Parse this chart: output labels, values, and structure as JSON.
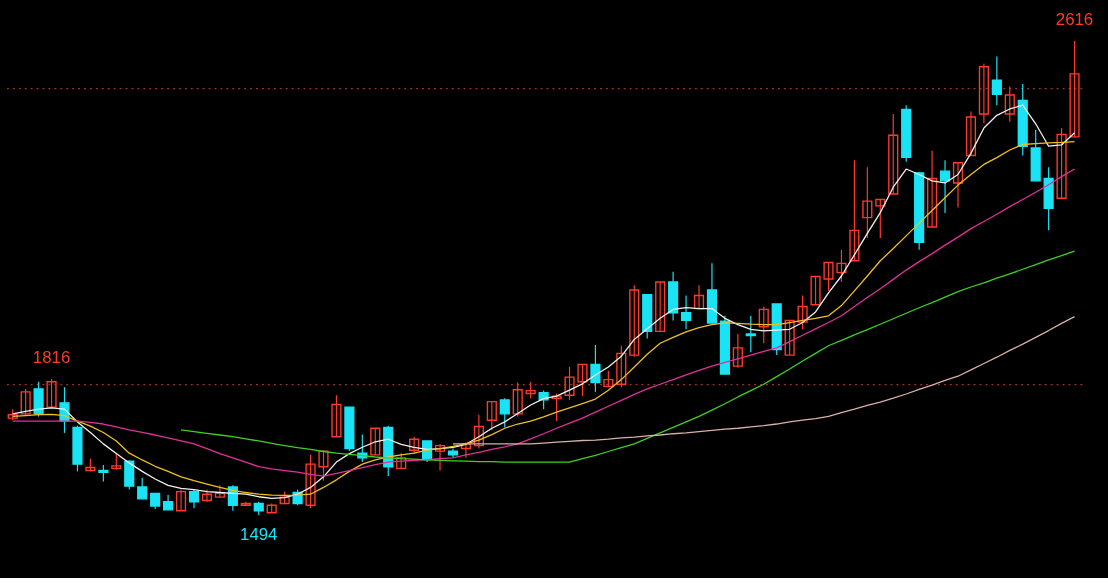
{
  "chart_data": {
    "type": "candlestick",
    "categories": [
      null,
      null,
      null,
      null,
      null,
      null,
      null,
      null,
      null,
      null,
      null,
      null,
      null,
      null,
      null,
      null,
      null,
      null,
      null,
      null,
      null,
      null,
      null,
      null,
      null,
      null,
      null,
      null,
      null,
      null,
      null,
      null,
      null,
      null,
      null,
      null,
      null,
      null,
      null,
      null,
      null,
      null,
      null,
      null,
      null,
      null,
      null,
      null,
      null,
      null,
      null,
      null,
      null,
      null,
      null,
      null,
      null,
      null,
      null,
      null,
      null,
      null,
      null,
      null,
      null,
      null,
      null,
      null,
      null,
      null,
      null,
      null,
      null,
      null,
      null,
      null,
      null,
      null,
      null,
      null,
      null,
      null,
      null
    ],
    "ohlc": [
      [
        1724,
        1745,
        1719,
        1732
      ],
      [
        1734,
        1793,
        1732,
        1786
      ],
      [
        1793,
        1810,
        1728,
        1734
      ],
      [
        1750,
        1816,
        1750,
        1810
      ],
      [
        1760,
        1797,
        1689,
        1717
      ],
      [
        1702,
        1706,
        1598,
        1615
      ],
      [
        1600,
        1628,
        1598,
        1607
      ],
      [
        1600,
        1613,
        1574,
        1596
      ],
      [
        1605,
        1641,
        1602,
        1611
      ],
      [
        1622,
        1624,
        1555,
        1563
      ],
      [
        1561,
        1583,
        1533,
        1533
      ],
      [
        1546,
        1546,
        1509,
        1516
      ],
      [
        1526,
        1542,
        1507,
        1507
      ],
      [
        1505,
        1555,
        1505,
        1550
      ],
      [
        1550,
        1555,
        1511,
        1526
      ],
      [
        1529,
        1555,
        1526,
        1544
      ],
      [
        1537,
        1565,
        1537,
        1546
      ],
      [
        1561,
        1565,
        1505,
        1518
      ],
      [
        1518,
        1526,
        1516,
        1522
      ],
      [
        1522,
        1526,
        1494,
        1505
      ],
      [
        1500,
        1522,
        1500,
        1518
      ],
      [
        1522,
        1550,
        1520,
        1537
      ],
      [
        1548,
        1555,
        1518,
        1522
      ],
      [
        1518,
        1637,
        1511,
        1615
      ],
      [
        1609,
        1648,
        1576,
        1646
      ],
      [
        1680,
        1778,
        1680,
        1756
      ],
      [
        1750,
        1750,
        1646,
        1652
      ],
      [
        1641,
        1685,
        1620,
        1630
      ],
      [
        1637,
        1700,
        1637,
        1700
      ],
      [
        1702,
        1706,
        1587,
        1609
      ],
      [
        1605,
        1641,
        1605,
        1630
      ],
      [
        1648,
        1680,
        1641,
        1674
      ],
      [
        1670,
        1670,
        1620,
        1626
      ],
      [
        1646,
        1663,
        1600,
        1659
      ],
      [
        1646,
        1652,
        1630,
        1637
      ],
      [
        1652,
        1667,
        1630,
        1663
      ],
      [
        1659,
        1732,
        1652,
        1704
      ],
      [
        1719,
        1763,
        1695,
        1763
      ],
      [
        1767,
        1771,
        1702,
        1734
      ],
      [
        1734,
        1808,
        1728,
        1791
      ],
      [
        1782,
        1810,
        1771,
        1789
      ],
      [
        1784,
        1789,
        1745,
        1767
      ],
      [
        1771,
        1782,
        1717,
        1776
      ],
      [
        1778,
        1845,
        1767,
        1821
      ],
      [
        1810,
        1851,
        1776,
        1851
      ],
      [
        1851,
        1897,
        1786,
        1808
      ],
      [
        1799,
        1836,
        1797,
        1815
      ],
      [
        1804,
        1895,
        1797,
        1877
      ],
      [
        1873,
        2038,
        1869,
        2027
      ],
      [
        2016,
        2016,
        1912,
        1929
      ],
      [
        1929,
        2046,
        1929,
        2046
      ],
      [
        2046,
        2070,
        1955,
        1973
      ],
      [
        1973,
        2014,
        1934,
        1955
      ],
      [
        1983,
        2038,
        1983,
        2014
      ],
      [
        2027,
        2090,
        1949,
        1949
      ],
      [
        1953,
        1966,
        1828,
        1828
      ],
      [
        1847,
        1923,
        1843,
        1890
      ],
      [
        1923,
        1966,
        1880,
        1919
      ],
      [
        1940,
        1988,
        1901,
        1981
      ],
      [
        1994,
        1994,
        1873,
        1886
      ],
      [
        1873,
        1955,
        1873,
        1955
      ],
      [
        1951,
        2014,
        1934,
        1988
      ],
      [
        1992,
        2059,
        1992,
        2059
      ],
      [
        2053,
        2092,
        2025,
        2092
      ],
      [
        2068,
        2122,
        2046,
        2090
      ],
      [
        2096,
        2334,
        2096,
        2168
      ],
      [
        2198,
        2317,
        2150,
        2237
      ],
      [
        2226,
        2241,
        2150,
        2241
      ],
      [
        2254,
        2443,
        2254,
        2393
      ],
      [
        2454,
        2464,
        2330,
        2341
      ],
      [
        2304,
        2306,
        2122,
        2140
      ],
      [
        2176,
        2356,
        2176,
        2291
      ],
      [
        2308,
        2334,
        2209,
        2285
      ],
      [
        2280,
        2328,
        2222,
        2328
      ],
      [
        2345,
        2449,
        2345,
        2436
      ],
      [
        2443,
        2562,
        2421,
        2555
      ],
      [
        2523,
        2579,
        2464,
        2490
      ],
      [
        2443,
        2508,
        2425,
        2488
      ],
      [
        2475,
        2514,
        2345,
        2367
      ],
      [
        2363,
        2406,
        2285,
        2285
      ],
      [
        2291,
        2317,
        2168,
        2220
      ],
      [
        2244,
        2410,
        2244,
        2395
      ],
      [
        2389,
        2616,
        2389,
        2538
      ]
    ],
    "series": [
      {
        "type": "line",
        "color": "#f2f2f2",
        "values": [
          1734,
          1740,
          1745,
          1748,
          1745,
          1715,
          1690,
          1663,
          1640,
          1618,
          1598,
          1580,
          1565,
          1558,
          1555,
          1550,
          1548,
          1546,
          1544,
          1538,
          1534,
          1536,
          1544,
          1560,
          1585,
          1620,
          1640,
          1655,
          1668,
          1674,
          1662,
          1655,
          1650,
          1652,
          1655,
          1662,
          1680,
          1700,
          1715,
          1735,
          1755,
          1770,
          1776,
          1790,
          1805,
          1826,
          1845,
          1870,
          1910,
          1935,
          1960,
          1981,
          1985,
          1983,
          1983,
          1960,
          1945,
          1934,
          1930,
          1932,
          1934,
          1950,
          1975,
          2020,
          2060,
          2110,
          2161,
          2210,
          2270,
          2313,
          2300,
          2285,
          2280,
          2300,
          2350,
          2410,
          2440,
          2455,
          2464,
          2420,
          2367,
          2370,
          2399
        ]
      },
      {
        "type": "line",
        "color": "#f0c020",
        "values": [
          1728,
          1730,
          1732,
          1733,
          1730,
          1717,
          1705,
          1690,
          1670,
          1641,
          1625,
          1610,
          1598,
          1585,
          1576,
          1568,
          1560,
          1553,
          1548,
          1544,
          1542,
          1541,
          1542,
          1544,
          1560,
          1578,
          1598,
          1615,
          1625,
          1632,
          1637,
          1641,
          1648,
          1652,
          1657,
          1663,
          1672,
          1685,
          1700,
          1710,
          1717,
          1727,
          1738,
          1748,
          1758,
          1769,
          1790,
          1815,
          1845,
          1875,
          1901,
          1915,
          1928,
          1938,
          1945,
          1949,
          1948,
          1946,
          1945,
          1945,
          1950,
          1955,
          1960,
          1966,
          1990,
          2025,
          2060,
          2096,
          2125,
          2155,
          2185,
          2215,
          2245,
          2275,
          2300,
          2324,
          2340,
          2358,
          2371,
          2373,
          2375,
          2376,
          2378
        ]
      },
      {
        "type": "line",
        "color": "#e0309a",
        "values": [
          1717,
          1717,
          1717,
          1717,
          1717,
          1717,
          1714,
          1710,
          1703,
          1696,
          1690,
          1684,
          1677,
          1670,
          1663,
          1652,
          1640,
          1630,
          1620,
          1609,
          1604,
          1600,
          1596,
          1591,
          1587,
          1593,
          1600,
          1607,
          1614,
          1620,
          1622,
          1624,
          1626,
          1628,
          1630,
          1637,
          1643,
          1650,
          1656,
          1663,
          1675,
          1687,
          1700,
          1712,
          1724,
          1738,
          1752,
          1766,
          1780,
          1793,
          1804,
          1815,
          1826,
          1837,
          1847,
          1856,
          1864,
          1873,
          1882,
          1890,
          1905,
          1920,
          1935,
          1950,
          1966,
          1988,
          2009,
          2030,
          2052,
          2074,
          2094,
          2113,
          2133,
          2152,
          2172,
          2189,
          2206,
          2224,
          2241,
          2258,
          2276,
          2295,
          2313
        ]
      },
      {
        "type": "line",
        "color": "#40d020",
        "values": [
          null,
          null,
          null,
          null,
          null,
          null,
          null,
          null,
          null,
          null,
          null,
          null,
          null,
          1696,
          1692,
          1688,
          1684,
          1680,
          1675,
          1670,
          1664,
          1659,
          1654,
          1650,
          1645,
          1641,
          1638,
          1635,
          1632,
          1630,
          1628,
          1627,
          1625,
          1624,
          1623,
          1622,
          1621,
          1621,
          1620,
          1620,
          1620,
          1620,
          1620,
          1620,
          1628,
          1636,
          1645,
          1654,
          1663,
          1676,
          1689,
          1702,
          1715,
          1728,
          1743,
          1758,
          1774,
          1789,
          1804,
          1822,
          1840,
          1859,
          1877,
          1895,
          1908,
          1921,
          1933,
          1946,
          1959,
          1972,
          1985,
          1997,
          2010,
          2023,
          2034,
          2044,
          2055,
          2065,
          2076,
          2087,
          2098,
          2108,
          2119
        ]
      },
      {
        "type": "line",
        "color": "#d8b0a8",
        "values": [
          null,
          null,
          null,
          null,
          null,
          null,
          null,
          null,
          null,
          null,
          null,
          null,
          null,
          null,
          null,
          null,
          null,
          null,
          null,
          null,
          null,
          null,
          null,
          null,
          null,
          null,
          null,
          null,
          null,
          null,
          null,
          null,
          null,
          null,
          1663,
          1663,
          1663,
          1663,
          1663,
          1663,
          1663,
          1665,
          1667,
          1669,
          1671,
          1672,
          1674,
          1677,
          1679,
          1682,
          1684,
          1687,
          1689,
          1692,
          1695,
          1698,
          1700,
          1703,
          1706,
          1710,
          1715,
          1719,
          1723,
          1728,
          1737,
          1745,
          1754,
          1762,
          1771,
          1781,
          1792,
          1802,
          1813,
          1823,
          1838,
          1853,
          1868,
          1884,
          1899,
          1915,
          1931,
          1948,
          1964
        ]
      }
    ],
    "ref_lines": [
      {
        "axis": "y",
        "value": 2503,
        "color": "#a03028",
        "line_style": "dotted"
      },
      {
        "axis": "y",
        "value": 1803,
        "color": "#a03028",
        "line_style": "dotted"
      }
    ],
    "annotations": [
      {
        "text": "1816",
        "y": 1816
      },
      {
        "text": "1494",
        "y": 1494
      },
      {
        "text": "2616",
        "y": 2616
      }
    ]
  }
}
